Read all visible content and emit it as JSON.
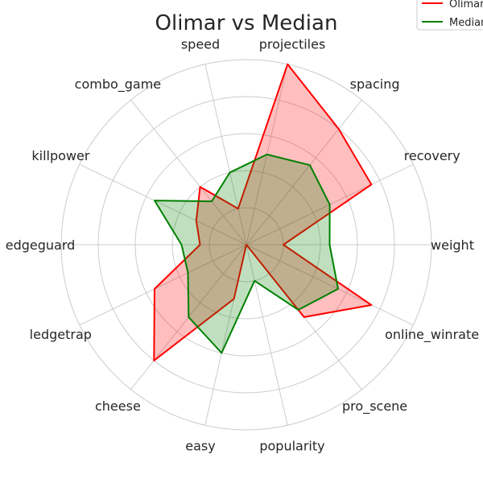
{
  "chart_data": {
    "type": "radar",
    "title": "Olimar vs Median",
    "axes": [
      "projectiles",
      "spacing",
      "recovery",
      "weight",
      "online_winrate",
      "pro_scene",
      "popularity",
      "easy",
      "cheese",
      "ledgetrap",
      "edgeguard",
      "killpower",
      "combo_game",
      "speed"
    ],
    "rmax": 1.0,
    "rings": [
      0.2,
      0.4,
      0.6,
      0.8,
      1.0
    ],
    "grid": true,
    "legend_position": "top-right",
    "series": [
      {
        "name": "Olimar",
        "color": "#ff0000",
        "fill": "#ff0000",
        "fill_opacity": 0.25,
        "values": [
          1.0,
          0.8,
          0.75,
          0.2,
          0.75,
          0.5,
          0.0,
          0.3,
          0.8,
          0.55,
          0.25,
          0.3,
          0.4,
          0.2
        ]
      },
      {
        "name": "Median",
        "color": "#008000",
        "fill": "#008000",
        "fill_opacity": 0.25,
        "values": [
          0.5,
          0.55,
          0.5,
          0.45,
          0.55,
          0.45,
          0.2,
          0.6,
          0.5,
          0.35,
          0.35,
          0.55,
          0.3,
          0.4
        ]
      }
    ]
  }
}
